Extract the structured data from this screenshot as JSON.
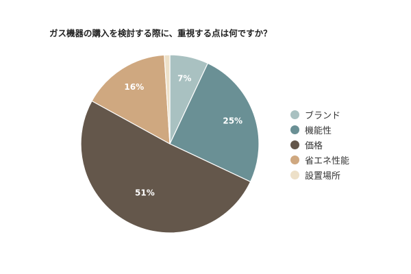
{
  "chart_data": {
    "type": "pie",
    "title": "ガス機器の購入を検討する際に、重視する点は何ですか？",
    "categories": [
      "ブランド",
      "機能性",
      "価格",
      "省エネ性能",
      "設置場所"
    ],
    "values": [
      7,
      25,
      51,
      16,
      1
    ],
    "value_labels": [
      "7%",
      "25%",
      "51%",
      "16%",
      ""
    ],
    "colors": [
      "#a9c1c1",
      "#6a9095",
      "#64574b",
      "#cfa880",
      "#ede0c8"
    ],
    "start": "top",
    "direction": "clockwise",
    "legend_position": "right"
  }
}
